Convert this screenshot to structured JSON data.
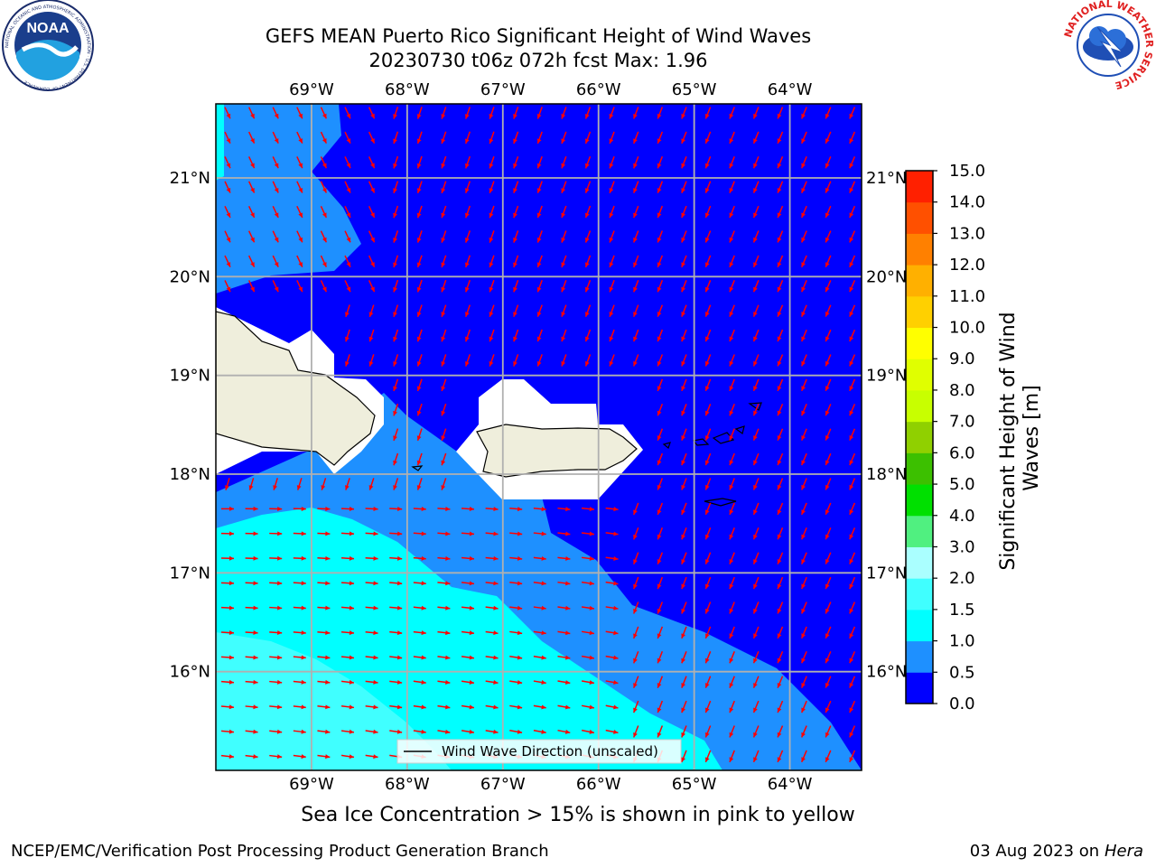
{
  "header": {
    "title": "GEFS MEAN Puerto Rico Significant Height of Wind Waves",
    "subtitle": "20230730 t06z 072h fcst   Max: 1.96",
    "left_logo_text": "NOAA",
    "left_logo_ring_text": "NATIONAL OCEANIC AND ATMOSPHERIC ADMINISTRATION · U.S. DEPARTMENT OF COMMERCE",
    "right_logo_ring_text": "NATIONAL WEATHER SERVICE"
  },
  "map": {
    "lon_labels": [
      "69°W",
      "68°W",
      "67°W",
      "66°W",
      "65°W",
      "64°W"
    ],
    "lat_labels": [
      "21°N",
      "20°N",
      "19°N",
      "18°N",
      "17°N",
      "16°N"
    ],
    "lon_range": [
      -70,
      -63.25
    ],
    "lat_range": [
      15,
      21.75
    ],
    "legend_label": "Wind Wave Direction (unscaled)",
    "land_color": "#efeedc",
    "mask_color": "#ffffff",
    "arrow_color": "#ff0000",
    "grid_color": "#b0b0b0"
  },
  "colorbar": {
    "label": "Significant Height of Wind Waves [m]",
    "tick_labels": [
      "0.0",
      "0.5",
      "1.0",
      "1.5",
      "2.0",
      "3.0",
      "4.0",
      "5.0",
      "6.0",
      "7.0",
      "8.0",
      "9.0",
      "10.0",
      "11.0",
      "12.0",
      "13.0",
      "14.0",
      "15.0"
    ],
    "colors": [
      "#0000ff",
      "#1e90ff",
      "#00ffff",
      "#40ffff",
      "#aaffff",
      "#50f080",
      "#00e000",
      "#3cc000",
      "#90d000",
      "#c8ff00",
      "#e0ff00",
      "#ffff00",
      "#ffd000",
      "#ffb000",
      "#ff8000",
      "#ff5000",
      "#ff2000"
    ]
  },
  "footer": {
    "note": "Sea Ice Concentration > 15% is shown in pink to yellow",
    "left": "NCEP/EMC/Verification Post Processing Product Generation Branch",
    "right_date": "03 Aug 2023 on",
    "right_machine": "Hera"
  }
}
